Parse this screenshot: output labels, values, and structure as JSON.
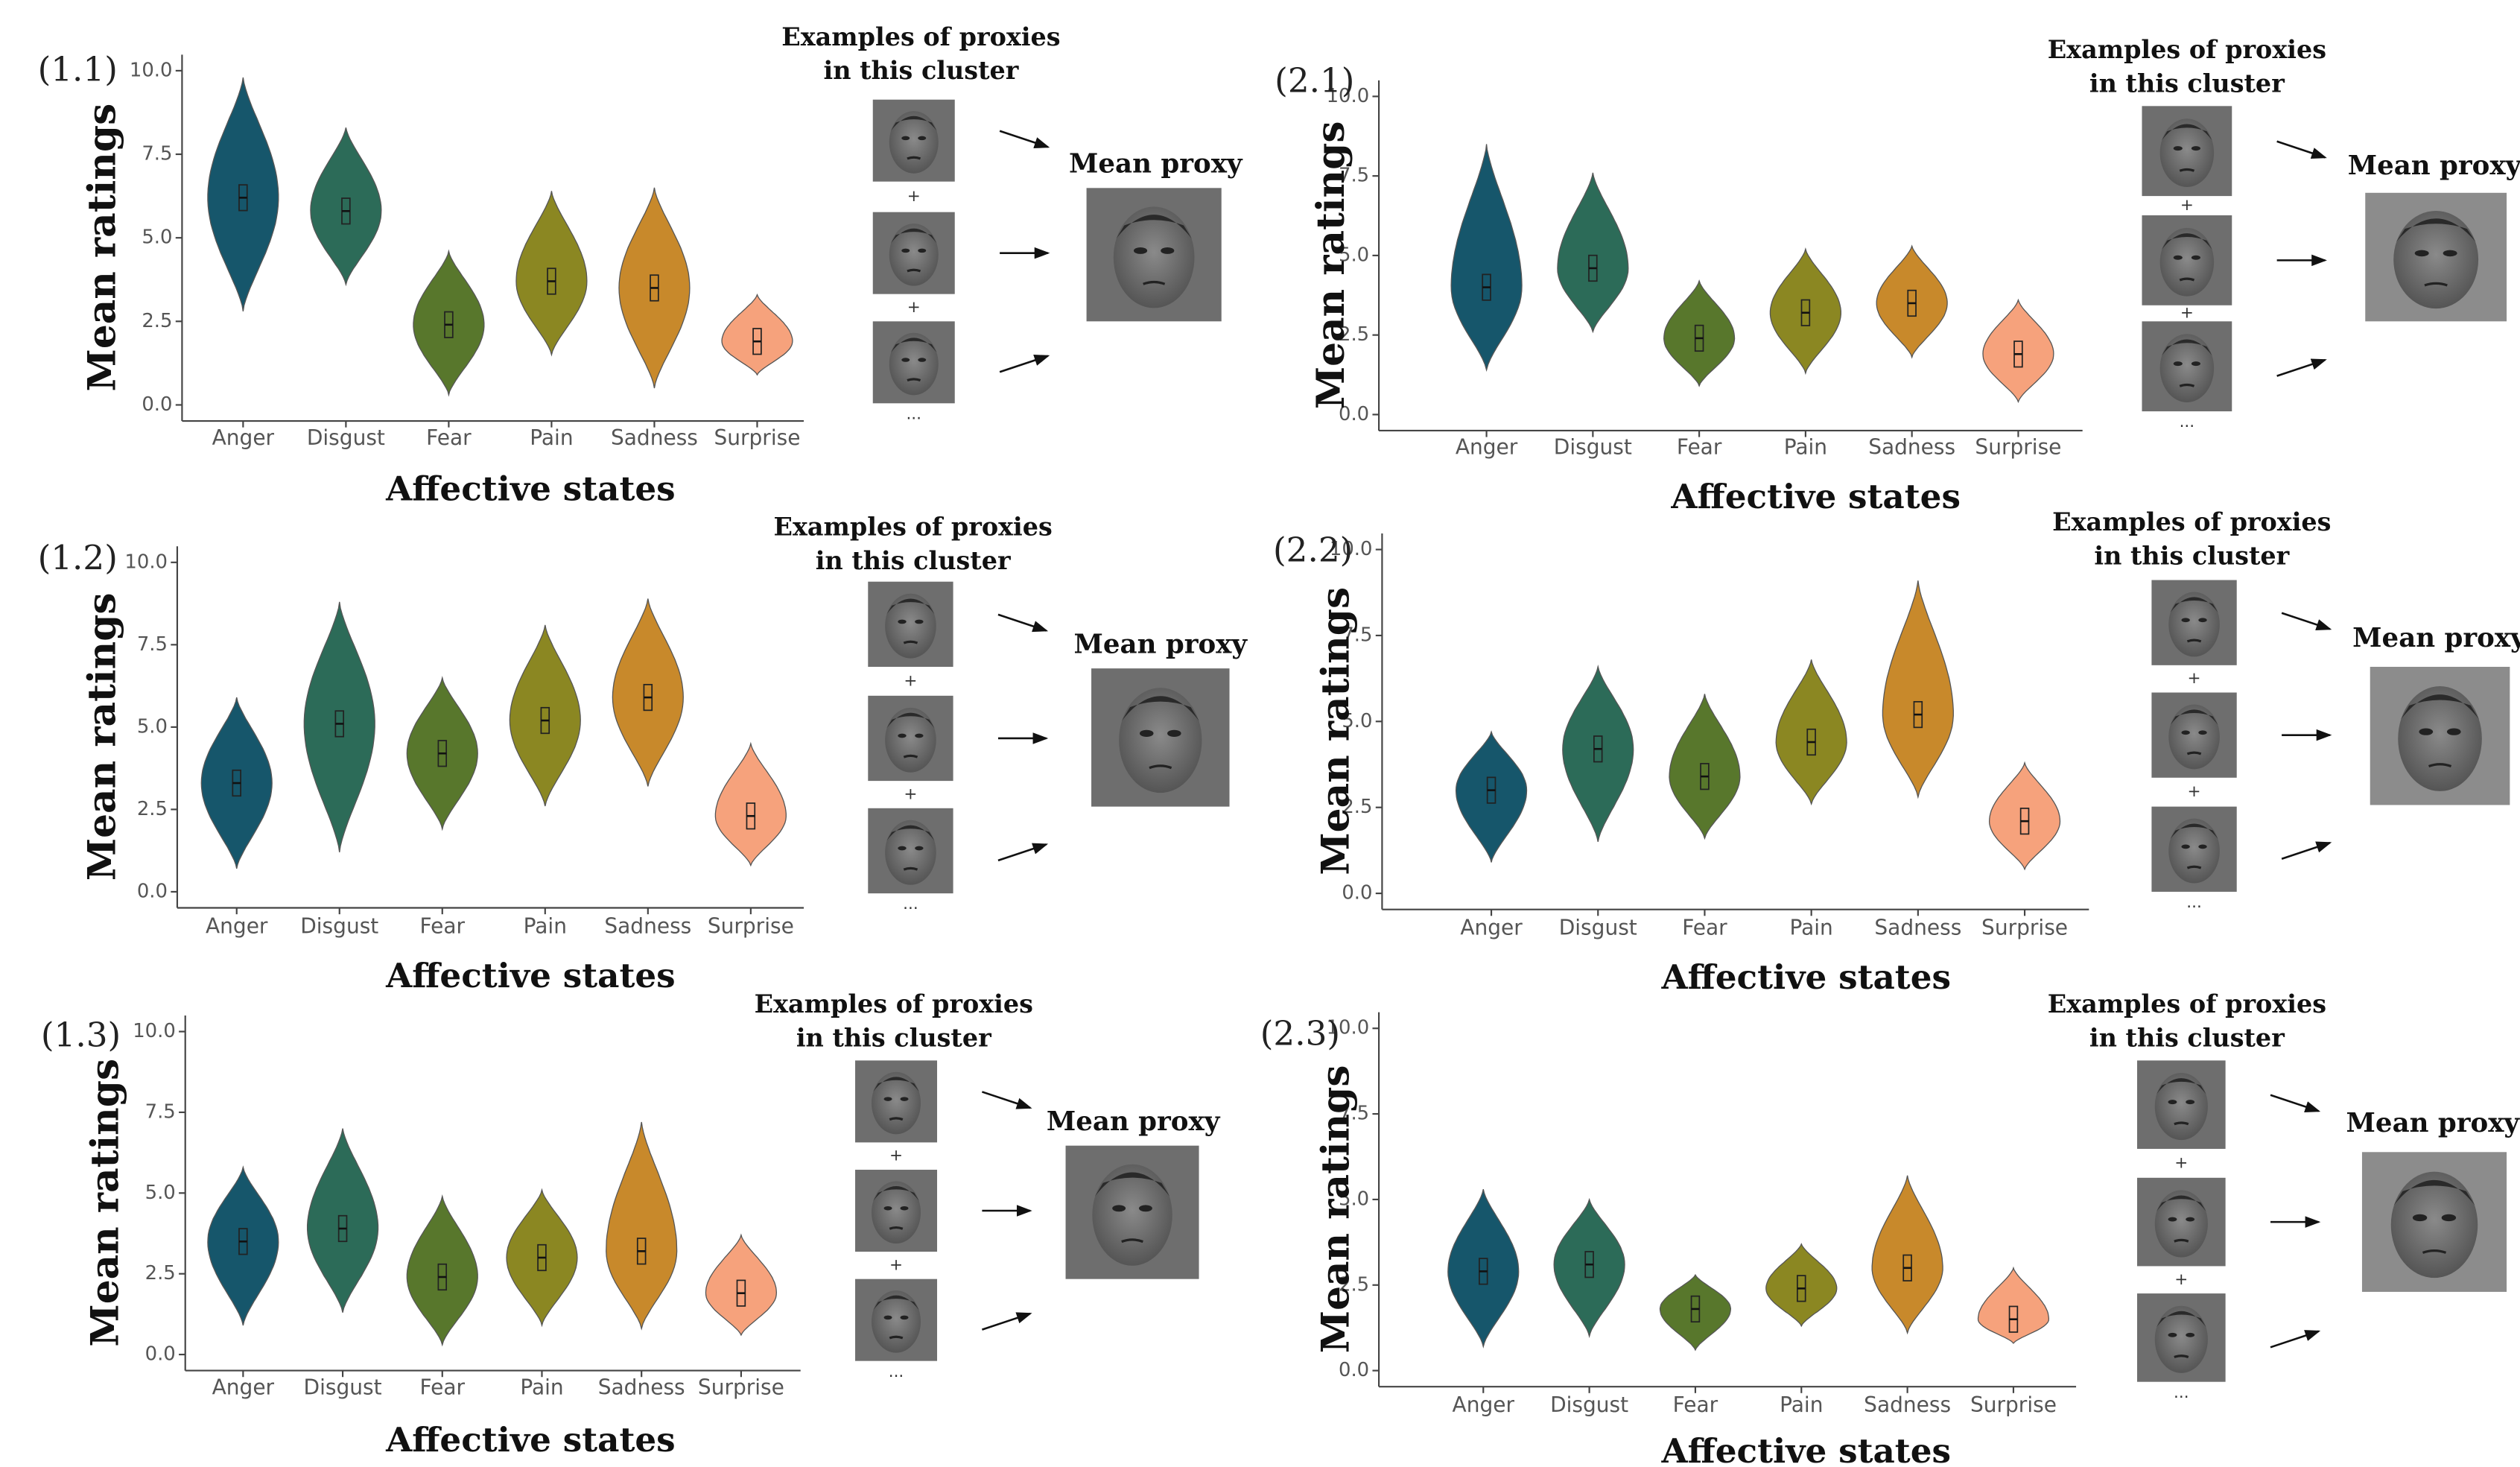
{
  "chart_data": [
    {
      "type": "violin",
      "panel_label": "(1.1)",
      "ylabel": "Mean ratings",
      "xlabel": "Affective states",
      "examples_label": [
        "Examples of proxies",
        "in this cluster"
      ],
      "mean_label": "Mean proxy",
      "plus": "+",
      "ellipsis": "...",
      "categories": [
        "Anger",
        "Disgust",
        "Fear",
        "Pain",
        "Sadness",
        "Surprise"
      ],
      "colors": [
        "#16566b",
        "#2c6b58",
        "#58772c",
        "#8b8722",
        "#c8892b",
        "#f6a27c"
      ],
      "values": [
        6.2,
        5.8,
        2.4,
        3.7,
        3.5,
        1.9
      ],
      "min": [
        2.8,
        3.6,
        0.3,
        1.5,
        0.5,
        0.9
      ],
      "max": [
        9.8,
        8.3,
        4.6,
        6.4,
        6.5,
        3.3
      ],
      "ylim": [
        0,
        10
      ],
      "yticks": [
        {
          "value": 0,
          "label": "0.0"
        },
        2.5,
        {
          "value": 5,
          "label": "5.0"
        },
        7.5,
        {
          "value": 10,
          "label": "10.0"
        }
      ]
    },
    {
      "type": "violin",
      "panel_label": "(1.2)",
      "ylabel": "Mean ratings",
      "xlabel": "Affective states",
      "examples_label": [
        "Examples of proxies",
        "in this cluster"
      ],
      "mean_label": "Mean proxy",
      "plus": "+",
      "ellipsis": "...",
      "categories": [
        "Anger",
        "Disgust",
        "Fear",
        "Pain",
        "Sadness",
        "Surprise"
      ],
      "colors": [
        "#16566b",
        "#2c6b58",
        "#58772c",
        "#8b8722",
        "#c8892b",
        "#f6a27c"
      ],
      "values": [
        3.3,
        5.1,
        4.2,
        5.2,
        5.9,
        2.3
      ],
      "min": [
        0.7,
        1.2,
        1.9,
        2.6,
        3.2,
        0.8
      ],
      "max": [
        5.9,
        8.8,
        6.5,
        8.1,
        8.9,
        4.5
      ],
      "ylim": [
        0,
        10
      ],
      "yticks": [
        {
          "value": 0,
          "label": "0.0"
        },
        2.5,
        {
          "value": 5,
          "label": "5.0"
        },
        7.5,
        {
          "value": 10,
          "label": "10.0"
        }
      ]
    },
    {
      "type": "violin",
      "panel_label": "(1.3)",
      "ylabel": "Mean ratings",
      "xlabel": "Affective states",
      "examples_label": [
        "Examples of proxies",
        "in this cluster"
      ],
      "mean_label": "Mean proxy",
      "plus": "+",
      "ellipsis": "...",
      "categories": [
        "Anger",
        "Disgust",
        "Fear",
        "Pain",
        "Sadness",
        "Surprise"
      ],
      "colors": [
        "#16566b",
        "#2c6b58",
        "#58772c",
        "#8b8722",
        "#c8892b",
        "#f6a27c"
      ],
      "values": [
        3.5,
        3.9,
        2.4,
        3.0,
        3.2,
        1.9
      ],
      "min": [
        0.9,
        1.3,
        0.3,
        0.9,
        0.8,
        0.6
      ],
      "max": [
        5.8,
        7.0,
        4.9,
        5.1,
        7.2,
        3.7
      ],
      "ylim": [
        0,
        10
      ],
      "yticks": [
        {
          "value": 0,
          "label": "0.0"
        },
        2.5,
        {
          "value": 5,
          "label": "5.0"
        },
        7.5,
        {
          "value": 10,
          "label": "10.0"
        }
      ]
    },
    {
      "type": "violin",
      "panel_label": "(2.1)",
      "ylabel": "Mean ratings",
      "xlabel": "Affective states",
      "examples_label": [
        "Examples of proxies",
        "in this cluster"
      ],
      "mean_label": "Mean proxy",
      "plus": "+",
      "ellipsis": "...",
      "categories": [
        "Anger",
        "Disgust",
        "Fear",
        "Pain",
        "Sadness",
        "Surprise"
      ],
      "colors": [
        "#16566b",
        "#2c6b58",
        "#58772c",
        "#8b8722",
        "#c8892b",
        "#f6a27c"
      ],
      "values": [
        4.0,
        4.6,
        2.4,
        3.2,
        3.5,
        1.9
      ],
      "min": [
        1.4,
        2.6,
        0.9,
        1.3,
        1.8,
        0.4
      ],
      "max": [
        8.5,
        7.6,
        4.2,
        5.2,
        5.3,
        3.6
      ],
      "ylim": [
        0,
        10
      ],
      "yticks": [
        {
          "value": 0,
          "label": "0.0"
        },
        2.5,
        {
          "value": 5,
          "label": "5.0"
        },
        7.5,
        {
          "value": 10,
          "label": "10.0"
        }
      ]
    },
    {
      "type": "violin",
      "panel_label": "(2.2)",
      "ylabel": "Mean ratings",
      "xlabel": "Affective states",
      "examples_label": [
        "Examples of proxies",
        "in this cluster"
      ],
      "mean_label": "Mean proxy",
      "plus": "+",
      "ellipsis": "...",
      "categories": [
        "Anger",
        "Disgust",
        "Fear",
        "Pain",
        "Sadness",
        "Surprise"
      ],
      "colors": [
        "#16566b",
        "#2c6b58",
        "#58772c",
        "#8b8722",
        "#c8892b",
        "#f6a27c"
      ],
      "values": [
        3.0,
        4.2,
        3.4,
        4.4,
        5.2,
        2.1
      ],
      "min": [
        0.9,
        1.5,
        1.6,
        2.6,
        2.8,
        0.7
      ],
      "max": [
        4.7,
        6.6,
        5.8,
        6.8,
        9.1,
        3.8
      ],
      "ylim": [
        0,
        10
      ],
      "yticks": [
        {
          "value": 0,
          "label": "0.0"
        },
        2.5,
        {
          "value": 5,
          "label": "5.0"
        },
        7.5,
        {
          "value": 10,
          "label": "10.0"
        }
      ]
    },
    {
      "type": "violin",
      "panel_label": "(2.3)",
      "ylabel": "Mean ratings",
      "xlabel": "Affective states",
      "examples_label": [
        "Examples of proxies",
        "in this cluster"
      ],
      "mean_label": "Mean proxy",
      "plus": "+",
      "ellipsis": "...",
      "categories": [
        "Anger",
        "Disgust",
        "Fear",
        "Pain",
        "Sadness",
        "Surprise"
      ],
      "colors": [
        "#16566b",
        "#2c6b58",
        "#58772c",
        "#8b8722",
        "#c8892b",
        "#f6a27c"
      ],
      "values": [
        2.9,
        3.1,
        1.8,
        2.4,
        3.0,
        1.5
      ],
      "min": [
        0.7,
        1.0,
        0.6,
        1.3,
        1.1,
        0.8
      ],
      "max": [
        5.3,
        5.0,
        2.8,
        3.7,
        5.7,
        3.0
      ],
      "ylim": [
        0,
        10
      ],
      "yticks": [
        {
          "value": 0,
          "label": "0.0"
        },
        2.5,
        {
          "value": 5,
          "label": "5.0"
        },
        7.5,
        {
          "value": 10,
          "label": "10.0"
        }
      ]
    }
  ]
}
